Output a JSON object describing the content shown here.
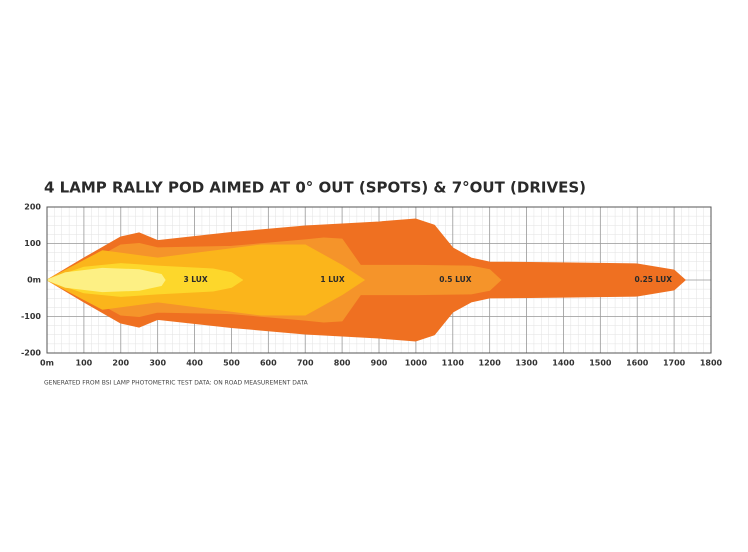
{
  "chart_data": {
    "type": "beam",
    "title": "4 LAMP RALLY POD AIMED AT 0° OUT (SPOTS) & 7°OUT (DRIVES)",
    "footnote": "GENERATED FROM BSI LAMP PHOTOMETRIC TEST DATA: ON ROAD MEASUREMENT DATA",
    "xlim": [
      0,
      1800
    ],
    "xticks": [
      {
        "value": 0,
        "label": "0m"
      },
      100,
      200,
      300,
      400,
      500,
      600,
      700,
      800,
      900,
      1000,
      1100,
      1200,
      1300,
      1400,
      1500,
      1600,
      1700,
      1800
    ],
    "ylim": [
      -200,
      200
    ],
    "yticks": [
      200,
      100,
      {
        "value": 0,
        "label": "0m"
      },
      -100,
      -200
    ],
    "grid": true,
    "series": [
      {
        "name": "0.25 LUX",
        "color": "#ef7021",
        "x": [
          0,
          100,
          200,
          250,
          300,
          500,
          700,
          900,
          1000,
          1050,
          1100,
          1150,
          1200,
          1400,
          1600,
          1700,
          1730
        ],
        "values": [
          0,
          60,
          118,
          129,
          108,
          130,
          148,
          159,
          167,
          150,
          88,
          60,
          49,
          47,
          44,
          27,
          0
        ]
      },
      {
        "name": "0.5 LUX",
        "color": "#f5942a",
        "x": [
          0,
          100,
          200,
          250,
          300,
          500,
          700,
          750,
          800,
          850,
          1000,
          1150,
          1200,
          1230
        ],
        "values": [
          0,
          40,
          96,
          100,
          88,
          92,
          110,
          115,
          112,
          40,
          40,
          38,
          28,
          0
        ]
      },
      {
        "name": "1 LUX",
        "color": "#fbb51b",
        "x": [
          0,
          150,
          300,
          580,
          700,
          750,
          800,
          860
        ],
        "values": [
          0,
          80,
          60,
          96,
          96,
          68,
          40,
          0
        ]
      },
      {
        "name": "3 LUX",
        "color": "#fdd72b",
        "x": [
          0,
          100,
          200,
          300,
          450,
          500,
          530
        ],
        "values": [
          0,
          35,
          45,
          38,
          30,
          20,
          0
        ]
      },
      {
        "color": "#fdf084",
        "x": [
          0,
          50,
          150,
          250,
          310,
          320
        ],
        "values": [
          0,
          20,
          32,
          28,
          15,
          0
        ]
      }
    ]
  }
}
